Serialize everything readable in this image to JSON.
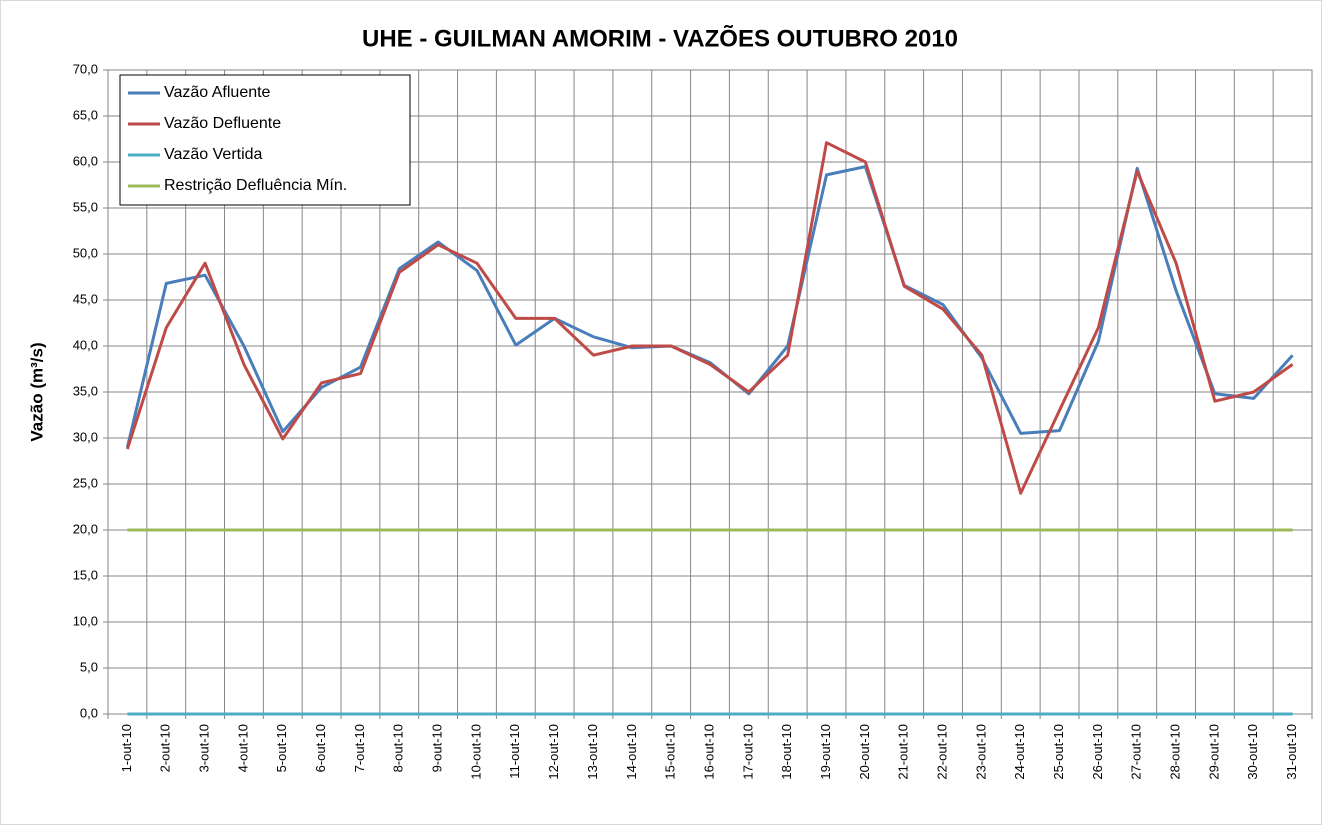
{
  "chart_data": {
    "type": "line",
    "title": "UHE - GUILMAN AMORIM - VAZÕES OUTUBRO 2010",
    "y_label": "Vazão (m³/s)",
    "categories": [
      "1-out-10",
      "2-out-10",
      "3-out-10",
      "4-out-10",
      "5-out-10",
      "6-out-10",
      "7-out-10",
      "8-out-10",
      "9-out-10",
      "10-out-10",
      "11-out-10",
      "12-out-10",
      "13-out-10",
      "14-out-10",
      "15-out-10",
      "16-out-10",
      "17-out-10",
      "18-out-10",
      "19-out-10",
      "20-out-10",
      "21-out-10",
      "22-out-10",
      "23-out-10",
      "24-out-10",
      "25-out-10",
      "26-out-10",
      "27-out-10",
      "28-out-10",
      "29-out-10",
      "30-out-10",
      "31-out-10"
    ],
    "series": [
      {
        "name": "Vazão Afluente",
        "color": "#4a7ebb",
        "values": [
          29.0,
          46.8,
          47.7,
          40.0,
          30.7,
          35.5,
          37.7,
          48.4,
          51.3,
          48.2,
          40.1,
          43.0,
          41.0,
          39.8,
          40.0,
          38.2,
          34.8,
          40.0,
          58.6,
          59.5,
          46.6,
          44.5,
          38.7,
          30.5,
          30.8,
          40.5,
          59.3,
          46.0,
          34.8,
          34.3,
          39.0
        ]
      },
      {
        "name": "Vazão Defluente",
        "color": "#be4b48",
        "values": [
          28.8,
          42.0,
          49.0,
          38.0,
          29.9,
          36.0,
          37.0,
          48.0,
          51.0,
          49.0,
          43.0,
          43.0,
          39.0,
          40.0,
          40.0,
          38.0,
          35.0,
          39.0,
          62.1,
          60.0,
          46.5,
          44.0,
          39.0,
          24.0,
          33.0,
          42.0,
          59.0,
          49.0,
          34.0,
          35.0,
          38.0
        ]
      },
      {
        "name": "Vazão Vertida",
        "color": "#4bacc6",
        "values": [
          0,
          0,
          0,
          0,
          0,
          0,
          0,
          0,
          0,
          0,
          0,
          0,
          0,
          0,
          0,
          0,
          0,
          0,
          0,
          0,
          0,
          0,
          0,
          0,
          0,
          0,
          0,
          0,
          0,
          0,
          0
        ]
      },
      {
        "name": "Restrição Defluência Mín.",
        "color": "#9bbb59",
        "values": [
          20,
          20,
          20,
          20,
          20,
          20,
          20,
          20,
          20,
          20,
          20,
          20,
          20,
          20,
          20,
          20,
          20,
          20,
          20,
          20,
          20,
          20,
          20,
          20,
          20,
          20,
          20,
          20,
          20,
          20,
          20
        ]
      }
    ],
    "ylim": [
      0,
      70
    ],
    "yticks": [
      {
        "value": 0,
        "label": "0,0"
      },
      {
        "value": 5,
        "label": "5,0"
      },
      {
        "value": 10,
        "label": "10,0"
      },
      {
        "value": 15,
        "label": "15,0"
      },
      {
        "value": 20,
        "label": "20,0"
      },
      {
        "value": 25,
        "label": "25,0"
      },
      {
        "value": 30,
        "label": "30,0"
      },
      {
        "value": 35,
        "label": "35,0"
      },
      {
        "value": 40,
        "label": "40,0"
      },
      {
        "value": 45,
        "label": "45,0"
      },
      {
        "value": 50,
        "label": "50,0"
      },
      {
        "value": 55,
        "label": "55,0"
      },
      {
        "value": 60,
        "label": "60,0"
      },
      {
        "value": 65,
        "label": "65,0"
      },
      {
        "value": 70,
        "label": "70,0"
      }
    ],
    "grid": true,
    "legend": "upper left"
  }
}
